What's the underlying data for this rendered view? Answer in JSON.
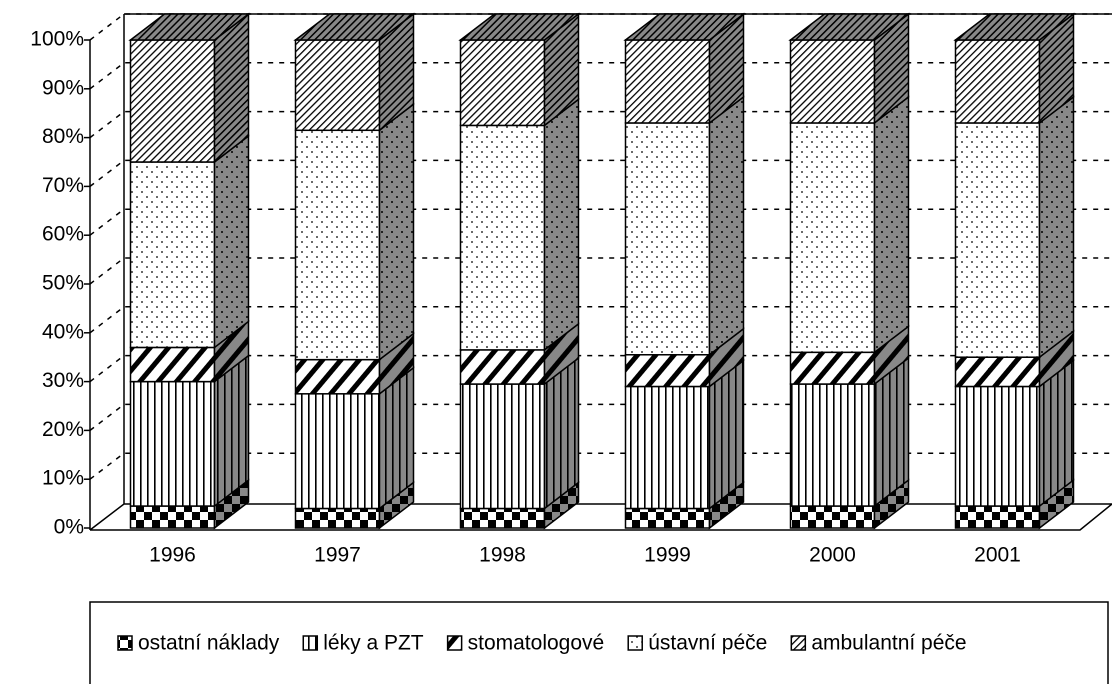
{
  "chart_data": {
    "type": "bar3d_stacked",
    "categories": [
      "1996",
      "1997",
      "1998",
      "1999",
      "2000",
      "2001"
    ],
    "series": [
      {
        "name": "ostatní náklady",
        "values": [
          4.5,
          4,
          4,
          4,
          4.5,
          4.5
        ]
      },
      {
        "name": "léky a PZT",
        "values": [
          25.5,
          23.5,
          25.5,
          25,
          25,
          24.5
        ]
      },
      {
        "name": "stomatologové",
        "values": [
          7,
          7,
          7,
          6.5,
          6.5,
          6
        ]
      },
      {
        "name": "ústavní péče",
        "values": [
          38,
          47,
          46,
          47.5,
          47,
          48
        ]
      },
      {
        "name": "ambulantní péče",
        "values": [
          25,
          18.5,
          17.5,
          17,
          17,
          17
        ]
      }
    ],
    "ylim": [
      0,
      100
    ],
    "yticks": [
      {
        "value": 0,
        "label": "0%"
      },
      {
        "value": 10,
        "label": "10%"
      },
      {
        "value": 20,
        "label": "20%"
      },
      {
        "value": 30,
        "label": "30%"
      },
      {
        "value": 40,
        "label": "40%"
      },
      {
        "value": 50,
        "label": "50%"
      },
      {
        "value": 60,
        "label": "60%"
      },
      {
        "value": 70,
        "label": "70%"
      },
      {
        "value": 80,
        "label": "80%"
      },
      {
        "value": 90,
        "label": "90%"
      },
      {
        "value": 100,
        "label": "100%"
      }
    ],
    "grid": true
  }
}
